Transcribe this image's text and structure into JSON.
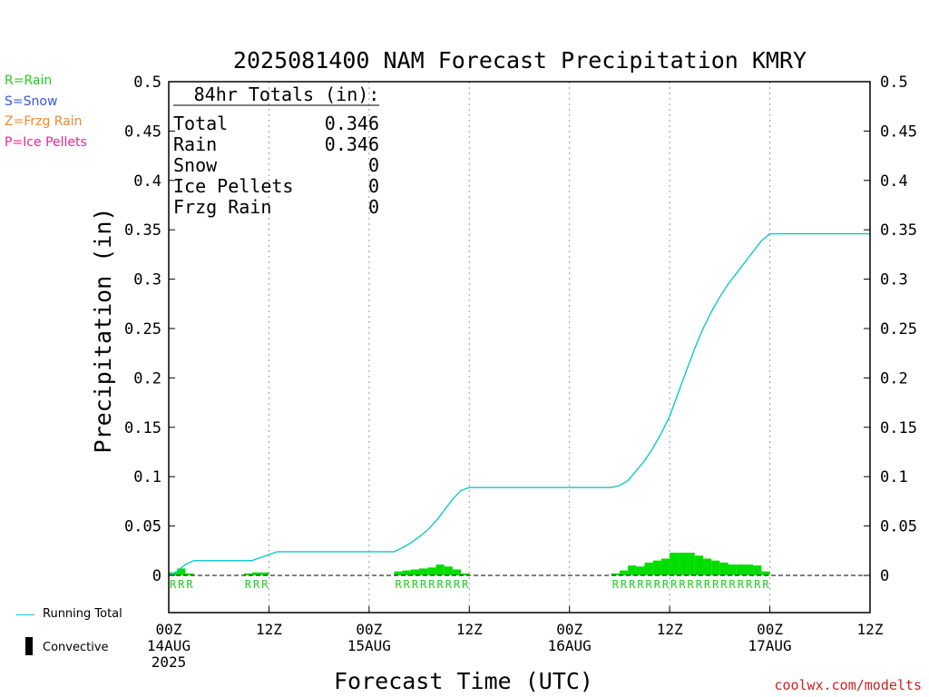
{
  "chart_data": {
    "type": "bar+line",
    "title": "2025081400 NAM Forecast Precipitation KMRY",
    "xlabel": "Forecast Time (UTC)",
    "ylabel": "Precipitation (in)",
    "ylim": [
      0,
      0.5
    ],
    "yticks": [
      0,
      0.05,
      0.1,
      0.15,
      0.2,
      0.25,
      0.3,
      0.35,
      0.4,
      0.45,
      0.5
    ],
    "ytick_labels": [
      "0",
      "0.05",
      "0.1",
      "0.15",
      "0.2",
      "0.25",
      "0.3",
      "0.35",
      "0.4",
      "0.45",
      "0.5"
    ],
    "xlim_hours": [
      0,
      84
    ],
    "xticks": [
      {
        "hour": 0,
        "lines": [
          "00Z",
          "14AUG",
          "2025"
        ]
      },
      {
        "hour": 12,
        "lines": [
          "12Z"
        ]
      },
      {
        "hour": 24,
        "lines": [
          "00Z",
          "15AUG"
        ]
      },
      {
        "hour": 36,
        "lines": [
          "12Z"
        ]
      },
      {
        "hour": 48,
        "lines": [
          "00Z",
          "16AUG"
        ]
      },
      {
        "hour": 60,
        "lines": [
          "12Z"
        ]
      },
      {
        "hour": 72,
        "lines": [
          "00Z",
          "17AUG"
        ]
      },
      {
        "hour": 84,
        "lines": [
          "12Z"
        ]
      }
    ],
    "totals_box": {
      "heading": "84hr Totals (in):",
      "rows": [
        {
          "label": "Total",
          "value": "0.346"
        },
        {
          "label": "Rain",
          "value": "0.346"
        },
        {
          "label": "Snow",
          "value": "0"
        },
        {
          "label": "Ice Pellets",
          "value": "0"
        },
        {
          "label": "Frzg Rain",
          "value": "0"
        }
      ]
    },
    "precip_type_legend": [
      {
        "text": "R=Rain",
        "color": "#22cc22"
      },
      {
        "text": "S=Snow",
        "color": "#3355ee"
      },
      {
        "text": "Z=Frzg Rain",
        "color": "#ee8833"
      },
      {
        "text": "P=Ice Pellets",
        "color": "#ee2299"
      }
    ],
    "series_legend": {
      "running_total": "Running Total",
      "convective": "Convective"
    },
    "colors": {
      "bars": "#00dd00",
      "running_total": "#11c8c8",
      "rain_marker": "#22cc22",
      "grid": "#999999"
    },
    "hourly_precip": [
      {
        "hour": 1,
        "value": 0.003,
        "type": "R"
      },
      {
        "hour": 2,
        "value": 0.007,
        "type": "R"
      },
      {
        "hour": 3,
        "value": 0.002,
        "type": "R"
      },
      {
        "hour": 10,
        "value": 0.002,
        "type": "R"
      },
      {
        "hour": 11,
        "value": 0.003,
        "type": "R"
      },
      {
        "hour": 12,
        "value": 0.003,
        "type": "R"
      },
      {
        "hour": 28,
        "value": 0.004,
        "type": "R"
      },
      {
        "hour": 29,
        "value": 0.005,
        "type": "R"
      },
      {
        "hour": 30,
        "value": 0.006,
        "type": "R"
      },
      {
        "hour": 31,
        "value": 0.007,
        "type": "R"
      },
      {
        "hour": 32,
        "value": 0.008,
        "type": "R"
      },
      {
        "hour": 33,
        "value": 0.011,
        "type": "R"
      },
      {
        "hour": 34,
        "value": 0.009,
        "type": "R"
      },
      {
        "hour": 35,
        "value": 0.006,
        "type": "R"
      },
      {
        "hour": 36,
        "value": 0.002,
        "type": "R"
      },
      {
        "hour": 54,
        "value": 0.002,
        "type": "R"
      },
      {
        "hour": 55,
        "value": 0.005,
        "type": "R"
      },
      {
        "hour": 56,
        "value": 0.01,
        "type": "R"
      },
      {
        "hour": 57,
        "value": 0.009,
        "type": "R"
      },
      {
        "hour": 58,
        "value": 0.013,
        "type": "R"
      },
      {
        "hour": 59,
        "value": 0.015,
        "type": "R"
      },
      {
        "hour": 60,
        "value": 0.017,
        "type": "R"
      },
      {
        "hour": 61,
        "value": 0.023,
        "type": "R"
      },
      {
        "hour": 62,
        "value": 0.023,
        "type": "R"
      },
      {
        "hour": 63,
        "value": 0.023,
        "type": "R"
      },
      {
        "hour": 64,
        "value": 0.02,
        "type": "R"
      },
      {
        "hour": 65,
        "value": 0.017,
        "type": "R"
      },
      {
        "hour": 66,
        "value": 0.015,
        "type": "R"
      },
      {
        "hour": 67,
        "value": 0.013,
        "type": "R"
      },
      {
        "hour": 68,
        "value": 0.011,
        "type": "R"
      },
      {
        "hour": 69,
        "value": 0.011,
        "type": "R"
      },
      {
        "hour": 70,
        "value": 0.011,
        "type": "R"
      },
      {
        "hour": 71,
        "value": 0.01,
        "type": "R"
      },
      {
        "hour": 72,
        "value": 0.004,
        "type": "R"
      }
    ],
    "running_total": [
      {
        "hour": 0,
        "value": 0.0
      },
      {
        "hour": 1,
        "value": 0.004
      },
      {
        "hour": 2,
        "value": 0.011
      },
      {
        "hour": 3,
        "value": 0.015
      },
      {
        "hour": 10,
        "value": 0.015
      },
      {
        "hour": 11,
        "value": 0.018
      },
      {
        "hour": 12,
        "value": 0.021
      },
      {
        "hour": 13,
        "value": 0.024
      },
      {
        "hour": 27,
        "value": 0.024
      },
      {
        "hour": 28,
        "value": 0.028
      },
      {
        "hour": 29,
        "value": 0.033
      },
      {
        "hour": 30,
        "value": 0.039
      },
      {
        "hour": 31,
        "value": 0.046
      },
      {
        "hour": 32,
        "value": 0.055
      },
      {
        "hour": 33,
        "value": 0.066
      },
      {
        "hour": 34,
        "value": 0.077
      },
      {
        "hour": 35,
        "value": 0.086
      },
      {
        "hour": 36,
        "value": 0.089
      },
      {
        "hour": 53,
        "value": 0.089
      },
      {
        "hour": 54,
        "value": 0.091
      },
      {
        "hour": 55,
        "value": 0.096
      },
      {
        "hour": 56,
        "value": 0.106
      },
      {
        "hour": 57,
        "value": 0.116
      },
      {
        "hour": 58,
        "value": 0.129
      },
      {
        "hour": 59,
        "value": 0.144
      },
      {
        "hour": 60,
        "value": 0.161
      },
      {
        "hour": 61,
        "value": 0.184
      },
      {
        "hour": 62,
        "value": 0.207
      },
      {
        "hour": 63,
        "value": 0.23
      },
      {
        "hour": 64,
        "value": 0.25
      },
      {
        "hour": 65,
        "value": 0.267
      },
      {
        "hour": 66,
        "value": 0.282
      },
      {
        "hour": 67,
        "value": 0.295
      },
      {
        "hour": 68,
        "value": 0.306
      },
      {
        "hour": 69,
        "value": 0.317
      },
      {
        "hour": 70,
        "value": 0.328
      },
      {
        "hour": 71,
        "value": 0.339
      },
      {
        "hour": 72,
        "value": 0.346
      },
      {
        "hour": 84,
        "value": 0.346
      }
    ]
  },
  "credit": "coolwx.com/modelts"
}
